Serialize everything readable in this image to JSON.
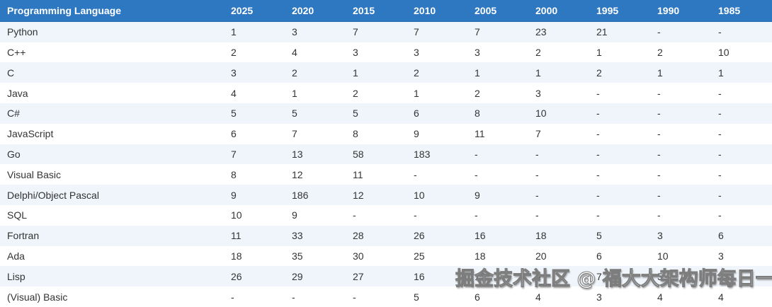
{
  "chart_data": {
    "type": "table",
    "columns": [
      "Programming Language",
      "2025",
      "2020",
      "2015",
      "2010",
      "2005",
      "2000",
      "1995",
      "1990",
      "1985"
    ],
    "rows": [
      {
        "language": "Python",
        "ranks": [
          1,
          3,
          7,
          7,
          7,
          23,
          21,
          "-",
          "-"
        ]
      },
      {
        "language": "C++",
        "ranks": [
          2,
          4,
          3,
          3,
          3,
          2,
          1,
          2,
          10
        ]
      },
      {
        "language": "C",
        "ranks": [
          3,
          2,
          1,
          2,
          1,
          1,
          2,
          1,
          1
        ]
      },
      {
        "language": "Java",
        "ranks": [
          4,
          1,
          2,
          1,
          2,
          3,
          "-",
          "-",
          "-"
        ]
      },
      {
        "language": "C#",
        "ranks": [
          5,
          5,
          5,
          6,
          8,
          10,
          "-",
          "-",
          "-"
        ]
      },
      {
        "language": "JavaScript",
        "ranks": [
          6,
          7,
          8,
          9,
          11,
          7,
          "-",
          "-",
          "-"
        ]
      },
      {
        "language": "Go",
        "ranks": [
          7,
          13,
          58,
          183,
          "-",
          "-",
          "-",
          "-",
          "-"
        ]
      },
      {
        "language": "Visual Basic",
        "ranks": [
          8,
          12,
          11,
          "-",
          "-",
          "-",
          "-",
          "-",
          "-"
        ]
      },
      {
        "language": "Delphi/Object Pascal",
        "ranks": [
          9,
          186,
          12,
          10,
          9,
          "-",
          "-",
          "-",
          "-"
        ]
      },
      {
        "language": "SQL",
        "ranks": [
          10,
          9,
          "-",
          "-",
          "-",
          "-",
          "-",
          "-",
          "-"
        ]
      },
      {
        "language": "Fortran",
        "ranks": [
          11,
          33,
          28,
          26,
          16,
          18,
          5,
          3,
          6
        ]
      },
      {
        "language": "Ada",
        "ranks": [
          18,
          35,
          30,
          25,
          18,
          20,
          6,
          10,
          3
        ]
      },
      {
        "language": "Lisp",
        "ranks": [
          26,
          29,
          27,
          16,
          15,
          9,
          7,
          5,
          2
        ]
      },
      {
        "language": "(Visual) Basic",
        "ranks": [
          "-",
          "-",
          "-",
          5,
          6,
          4,
          3,
          4,
          4
        ]
      }
    ],
    "layout_hints": {
      "striped": true,
      "stripe_starts_on_first_data_row": true
    }
  },
  "watermark": {
    "text": "掘金技术社区 @ 福大大架构师每日一题"
  },
  "colors": {
    "header_bg": "#2e78c1",
    "header_text": "#ffffff",
    "stripe_bg": "#eff5fb",
    "row_bg": "#ffffff",
    "body_text": "#333333"
  }
}
